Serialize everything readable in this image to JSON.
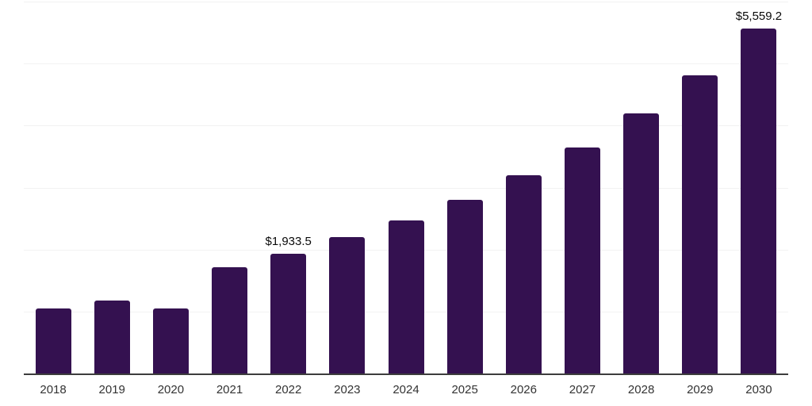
{
  "chart_data": {
    "type": "bar",
    "title": "",
    "xlabel": "",
    "ylabel": "",
    "categories": [
      "2018",
      "2019",
      "2020",
      "2021",
      "2022",
      "2023",
      "2024",
      "2025",
      "2026",
      "2027",
      "2028",
      "2029",
      "2030"
    ],
    "values": [
      1055,
      1175,
      1050,
      1715,
      1933.5,
      2205,
      2465,
      2800,
      3195,
      3645,
      4195,
      4815,
      5559.2
    ],
    "value_labels": [
      {
        "category": "2022",
        "text": "$1,933.5"
      },
      {
        "category": "2030",
        "text": "$5,559.2"
      }
    ],
    "ylim": [
      0,
      6000
    ],
    "grid_step": 1000,
    "grid": true,
    "legend": false,
    "colors": {
      "bar": "#341150",
      "axis_line": "#3d3d3d",
      "gridline": "#f2f2f2",
      "tick_label": "#333333",
      "value_label": "#0a0a0a",
      "background": "#ffffff"
    }
  }
}
